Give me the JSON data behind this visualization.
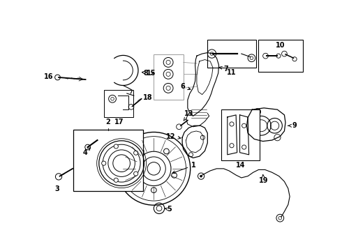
{
  "bg_color": "#ffffff",
  "line_color": "#000000",
  "gray_color": "#999999",
  "fig_width": 4.9,
  "fig_height": 3.6,
  "dpi": 100
}
